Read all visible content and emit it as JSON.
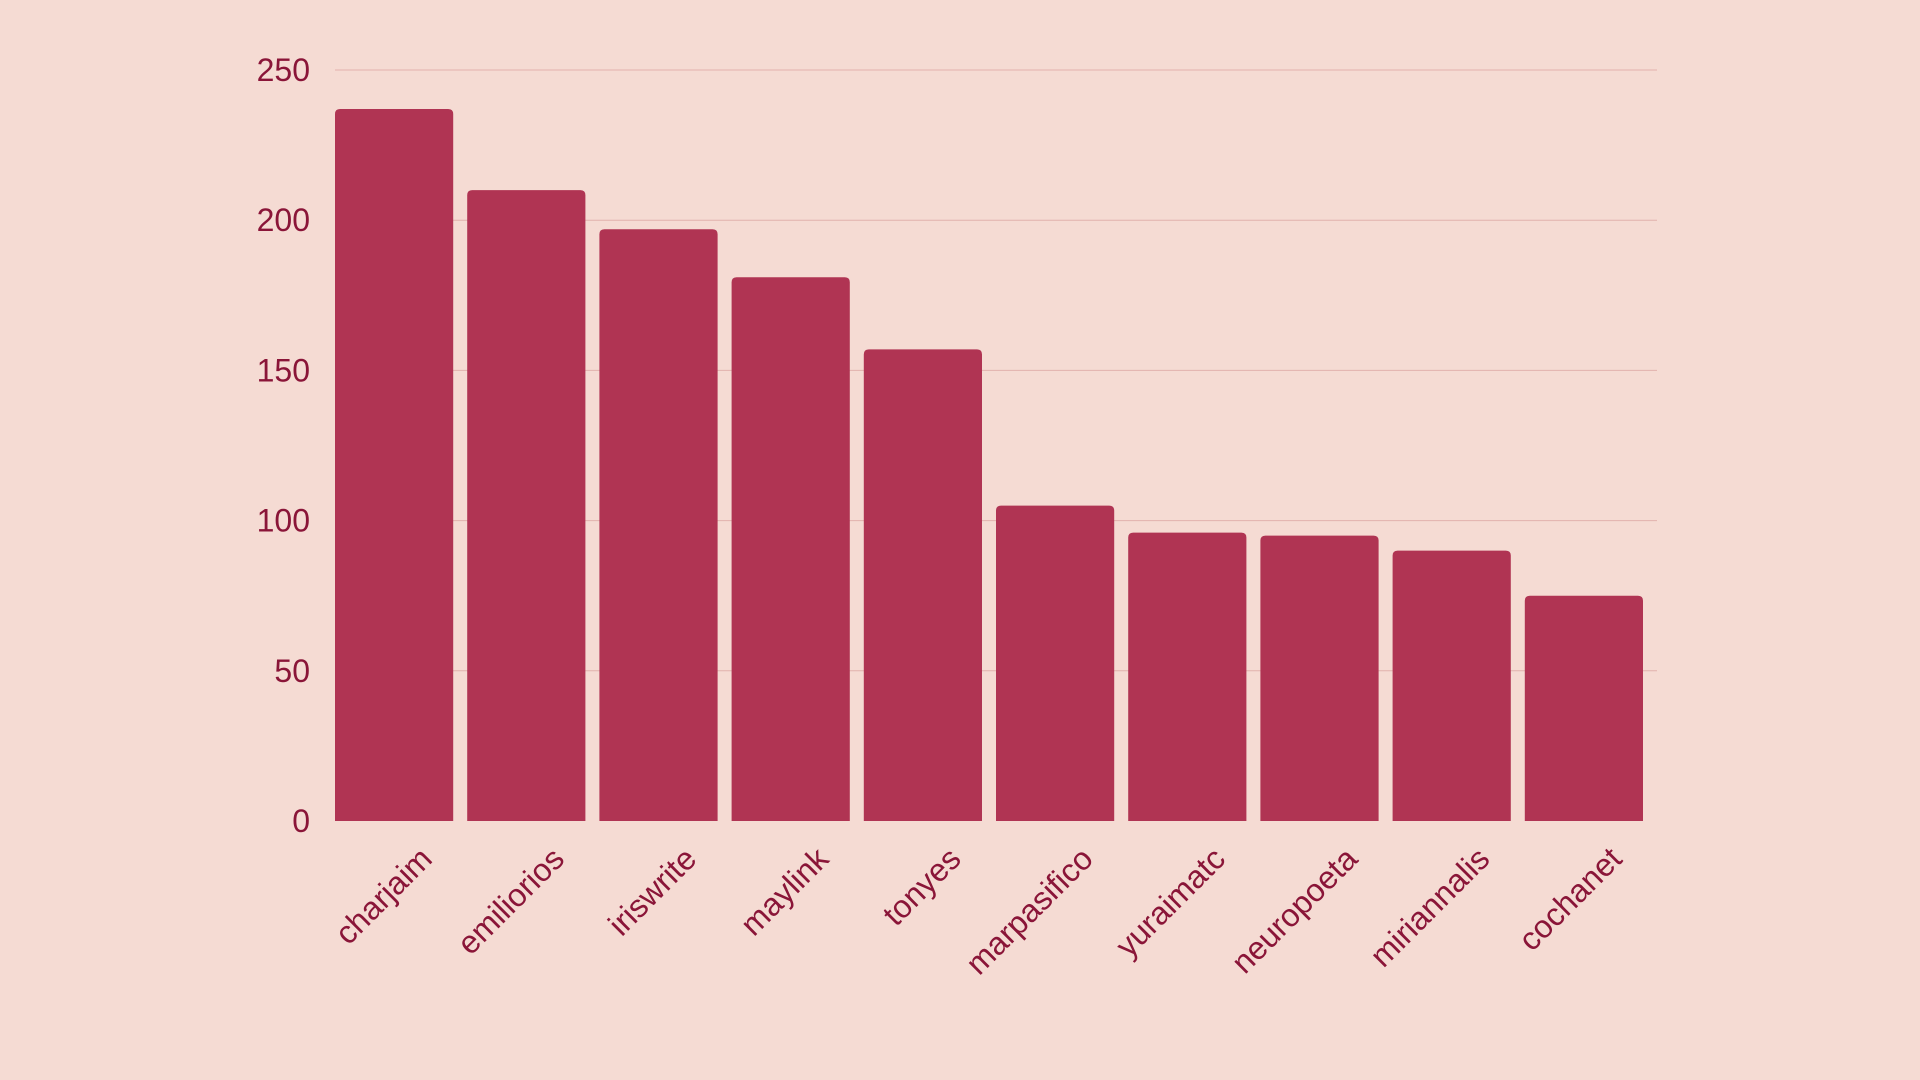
{
  "colors": {
    "background": "#f5dbd3",
    "bar": "#b03453",
    "text": "#8a1538",
    "grid": "#e2b2ad"
  },
  "chart_data": {
    "type": "bar",
    "categories": [
      "charjaim",
      "emiliorios",
      "iriswrite",
      "maylink",
      "tonyes",
      "marpasifico",
      "yuraimatc",
      "neuropoeta",
      "miriannalis",
      "cochanet"
    ],
    "values": [
      237,
      210,
      197,
      181,
      157,
      105,
      96,
      95,
      90,
      75
    ],
    "title": "",
    "xlabel": "",
    "ylabel": "",
    "ylim": [
      0,
      250
    ],
    "yticks": [
      0,
      50,
      100,
      150,
      200,
      250
    ],
    "grid": true,
    "legend": "none"
  }
}
